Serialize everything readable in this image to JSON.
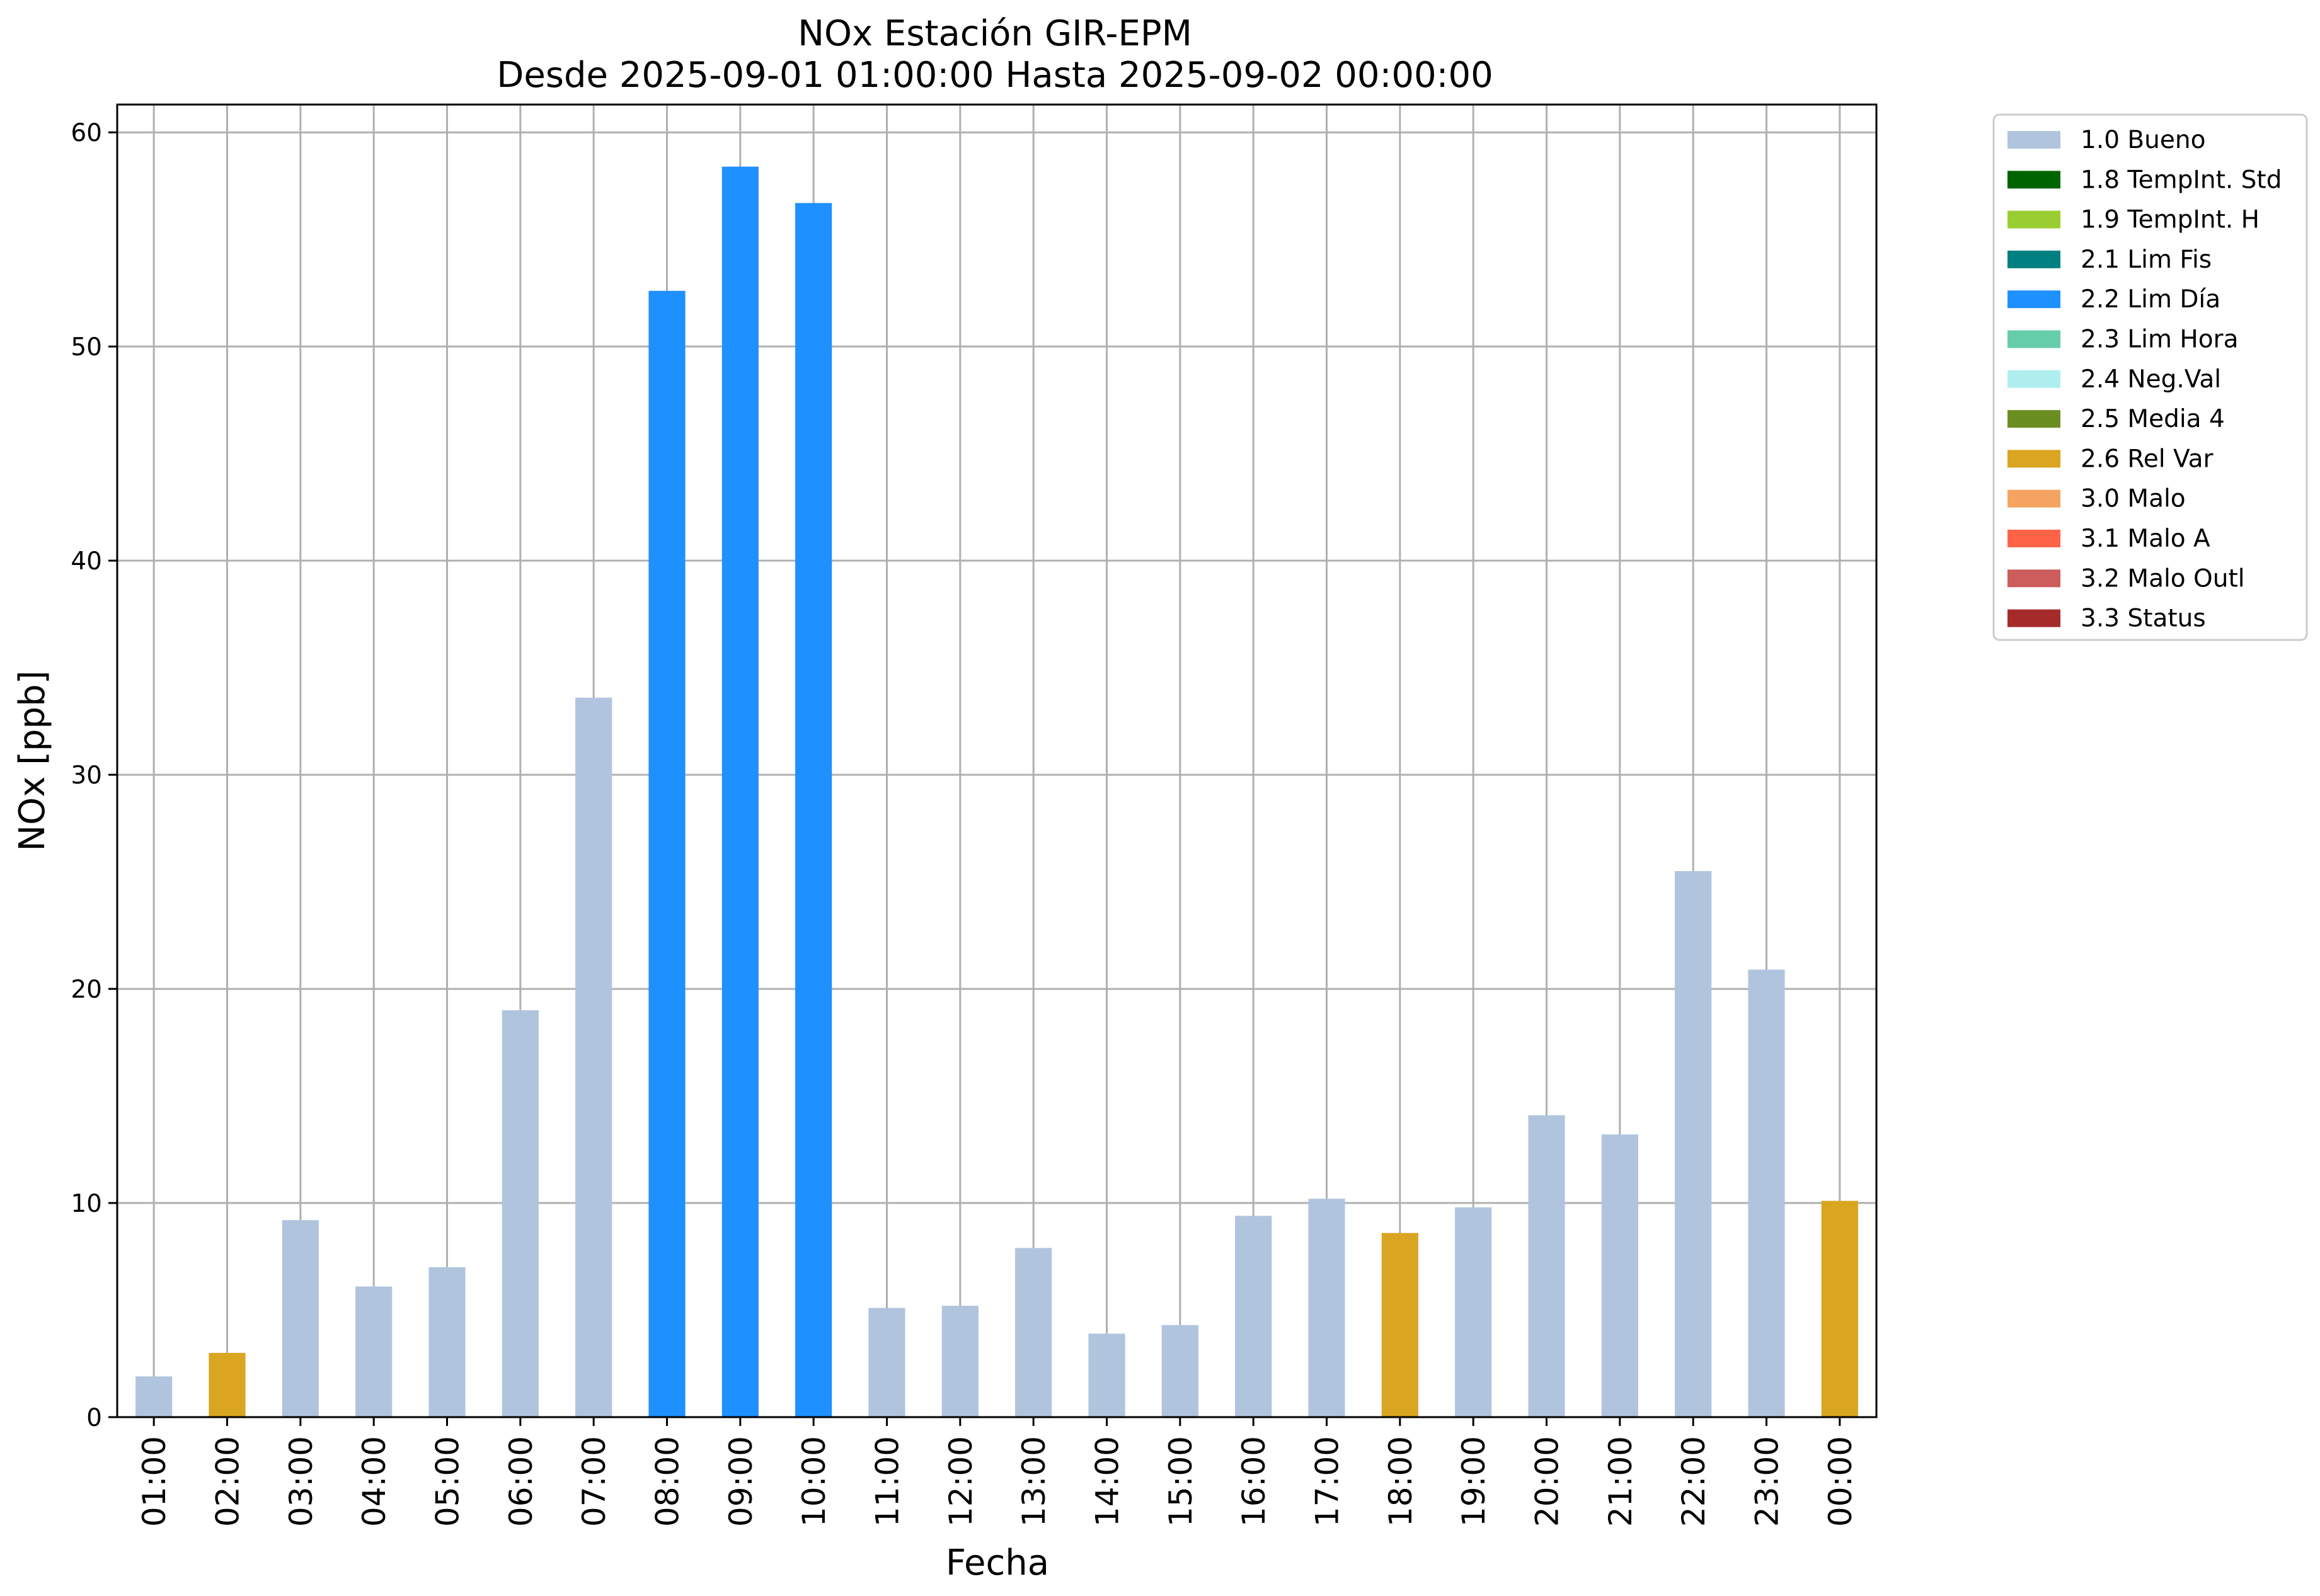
{
  "chart_data": {
    "type": "bar",
    "title": "NOx Estación GIR-EPM",
    "subtitle": "Desde 2025-09-01 01:00:00 Hasta 2025-09-02 00:00:00",
    "xlabel": "Fecha",
    "ylabel": "NOx [ppb]",
    "ylim": [
      0,
      61.3
    ],
    "yticks": [
      0,
      10,
      20,
      30,
      40,
      50,
      60
    ],
    "grid": true,
    "legend_position": "outside-top-right",
    "categories": [
      "01:00",
      "02:00",
      "03:00",
      "04:00",
      "05:00",
      "06:00",
      "07:00",
      "08:00",
      "09:00",
      "10:00",
      "11:00",
      "12:00",
      "13:00",
      "14:00",
      "15:00",
      "16:00",
      "17:00",
      "18:00",
      "19:00",
      "20:00",
      "21:00",
      "22:00",
      "23:00",
      "00:00"
    ],
    "values": [
      1.9,
      3.0,
      9.2,
      6.1,
      7.0,
      19.0,
      33.6,
      52.6,
      58.4,
      56.7,
      5.1,
      5.2,
      7.9,
      3.9,
      4.3,
      9.4,
      10.2,
      8.6,
      9.8,
      14.1,
      13.2,
      25.5,
      20.9,
      10.1
    ],
    "flags": [
      "1.0 Bueno",
      "2.6 Rel Var",
      "1.0 Bueno",
      "1.0 Bueno",
      "1.0 Bueno",
      "1.0 Bueno",
      "1.0 Bueno",
      "2.2 Lim Día",
      "2.2 Lim Día",
      "2.2 Lim Día",
      "1.0 Bueno",
      "1.0 Bueno",
      "1.0 Bueno",
      "1.0 Bueno",
      "1.0 Bueno",
      "1.0 Bueno",
      "1.0 Bueno",
      "2.6 Rel Var",
      "1.0 Bueno",
      "1.0 Bueno",
      "1.0 Bueno",
      "1.0 Bueno",
      "1.0 Bueno",
      "2.6 Rel Var"
    ],
    "legend": [
      {
        "label": "1.0 Bueno",
        "color": "#b0c4de"
      },
      {
        "label": "1.8 TempInt. Std",
        "color": "#006400"
      },
      {
        "label": "1.9 TempInt. H",
        "color": "#9acd32"
      },
      {
        "label": "2.1 Lim Fis",
        "color": "#008080"
      },
      {
        "label": "2.2 Lim Día",
        "color": "#1e90ff"
      },
      {
        "label": "2.3 Lim Hora",
        "color": "#66cdaa"
      },
      {
        "label": "2.4 Neg.Val",
        "color": "#afeeee"
      },
      {
        "label": "2.5 Media 4",
        "color": "#6b8e23"
      },
      {
        "label": "2.6 Rel Var",
        "color": "#daa520"
      },
      {
        "label": "3.0 Malo",
        "color": "#f4a460"
      },
      {
        "label": "3.1 Malo A",
        "color": "#ff6347"
      },
      {
        "label": "3.2 Malo Outl",
        "color": "#cd5c5c"
      },
      {
        "label": "3.3 Status",
        "color": "#a52a2a"
      }
    ]
  }
}
